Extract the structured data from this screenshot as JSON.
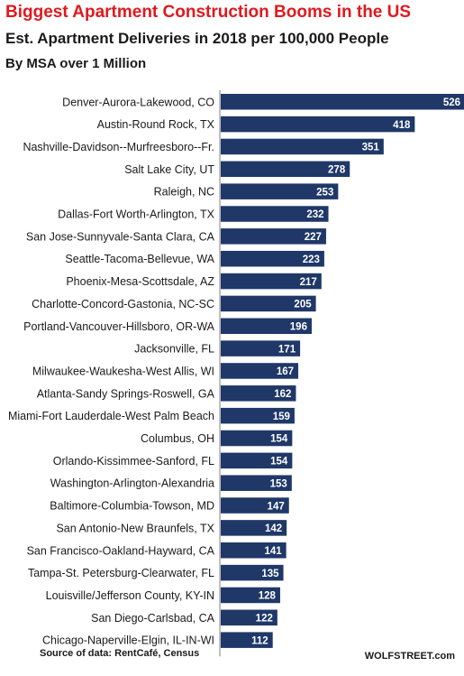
{
  "header": {
    "title": "Biggest Apartment Construction Booms in the US",
    "subtitle": "Est. Apartment Deliveries in 2018 per 100,000 People",
    "subtitle2": "By MSA over 1 Million"
  },
  "footer": {
    "source": "Source of data: RentCafé, Census",
    "credit": "WOLFSTREET.com"
  },
  "colors": {
    "bar": "#1f3868",
    "label_text": "#ffffff",
    "axis": "#7f7f7f",
    "title": "#e0191e"
  },
  "chart_data": {
    "type": "bar",
    "orientation": "horizontal",
    "categories": [
      "Denver-Aurora-Lakewood, CO",
      "Austin-Round Rock, TX",
      "Nashville-Davidson--Murfreesboro--Fr.",
      "Salt Lake City, UT",
      "Raleigh, NC",
      "Dallas-Fort Worth-Arlington, TX",
      "San Jose-Sunnyvale-Santa Clara, CA",
      "Seattle-Tacoma-Bellevue, WA",
      "Phoenix-Mesa-Scottsdale, AZ",
      "Charlotte-Concord-Gastonia, NC-SC",
      "Portland-Vancouver-Hillsboro, OR-WA",
      "Jacksonville, FL",
      "Milwaukee-Waukesha-West Allis, WI",
      "Atlanta-Sandy Springs-Roswell, GA",
      "Miami-Fort Lauderdale-West Palm Beach",
      "Columbus, OH",
      "Orlando-Kissimmee-Sanford, FL",
      "Washington-Arlington-Alexandria",
      "Baltimore-Columbia-Towson, MD",
      "San Antonio-New Braunfels, TX",
      "San Francisco-Oakland-Hayward, CA",
      "Tampa-St. Petersburg-Clearwater, FL",
      "Louisville/Jefferson County, KY-IN",
      "San Diego-Carlsbad, CA",
      "Chicago-Naperville-Elgin, IL-IN-WI"
    ],
    "values": [
      526,
      418,
      351,
      278,
      253,
      232,
      227,
      223,
      217,
      205,
      196,
      171,
      167,
      162,
      159,
      154,
      154,
      153,
      147,
      142,
      141,
      135,
      128,
      122,
      112
    ],
    "xlim": [
      0,
      526
    ],
    "data_labels": "inside-end",
    "grid": false,
    "legend": "none"
  }
}
